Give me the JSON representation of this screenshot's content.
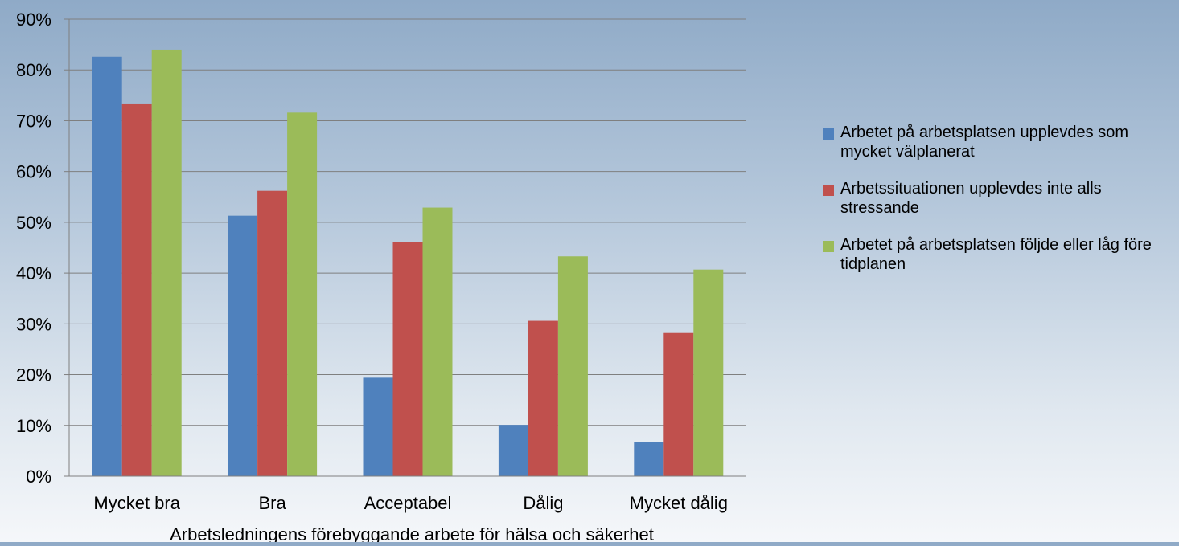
{
  "chart_data": {
    "type": "bar",
    "categories": [
      "Mycket bra",
      "Bra",
      "Acceptabel",
      "Dålig",
      "Mycket dålig"
    ],
    "series": [
      {
        "name": "Arbetet på arbetsplatsen upplevdes som mycket välplanerat",
        "color": "#4f81bd",
        "values": [
          0.826,
          0.513,
          0.194,
          0.101,
          0.067
        ]
      },
      {
        "name": "Arbetssituationen upplevdes inte alls stressande",
        "color": "#c0504d",
        "values": [
          0.734,
          0.562,
          0.461,
          0.306,
          0.282
        ]
      },
      {
        "name": "Arbetet på arbetsplatsen följde eller låg före tidplanen",
        "color": "#9bbb59",
        "values": [
          0.84,
          0.716,
          0.529,
          0.433,
          0.407
        ]
      }
    ],
    "yticks": [
      "0%",
      "10%",
      "20%",
      "30%",
      "40%",
      "50%",
      "60%",
      "70%",
      "80%",
      "90%"
    ],
    "ylim": [
      0,
      0.9
    ],
    "xlabel": "Arbetsledningens förebyggande arbete för hälsa och säkerhet",
    "ylabel": "",
    "grid": true,
    "legend_position": "right"
  }
}
